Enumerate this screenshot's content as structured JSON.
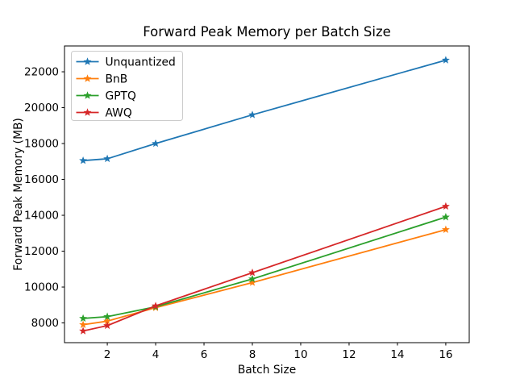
{
  "figure": {
    "background": "#ffffff",
    "plot_background": "#ffffff",
    "spine_color": "#000000"
  },
  "chart_data": {
    "type": "line",
    "title": "Forward Peak Memory per Batch Size",
    "xlabel": "Batch Size",
    "ylabel": "Forward Peak Memory (MB)",
    "x": [
      1,
      2,
      4,
      8,
      16
    ],
    "series": [
      {
        "name": "Unquantized",
        "color": "#1f77b4",
        "values": [
          17050,
          17150,
          18000,
          19600,
          22650
        ]
      },
      {
        "name": "BnB",
        "color": "#ff7f0e",
        "values": [
          7900,
          8100,
          8850,
          10250,
          13200
        ]
      },
      {
        "name": "GPTQ",
        "color": "#2ca02c",
        "values": [
          8250,
          8350,
          8900,
          10450,
          13900
        ]
      },
      {
        "name": "AWQ",
        "color": "#d62728",
        "values": [
          7550,
          7850,
          8950,
          10800,
          14500
        ]
      }
    ],
    "x_ticks": [
      2,
      4,
      6,
      8,
      10,
      12,
      14,
      16
    ],
    "y_ticks": [
      8000,
      10000,
      12000,
      14000,
      16000,
      18000,
      20000,
      22000
    ],
    "xlim": [
      0.23,
      16.97
    ],
    "ylim": [
      6900,
      23440
    ],
    "grid": false,
    "marker": "star",
    "legend": {
      "position": "upper left",
      "border_color": "#cccccc",
      "background": "#ffffff",
      "entries": [
        "Unquantized",
        "BnB",
        "GPTQ",
        "AWQ"
      ]
    }
  }
}
